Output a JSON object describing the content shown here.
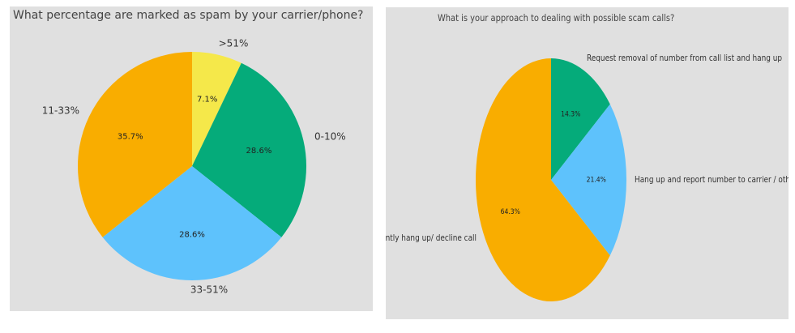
{
  "chart_data": [
    {
      "type": "pie",
      "title": "What percentage are marked as spam by your carrier/phone?",
      "categories": [
        ">51%",
        "0-10%",
        "33-51%",
        "11-33%"
      ],
      "values": [
        7.1,
        28.6,
        28.6,
        35.7
      ],
      "value_labels": [
        "7.1%",
        "28.6%",
        "28.6%",
        "35.7%"
      ],
      "colors": [
        "#f5e84a",
        "#05ab7a",
        "#5ec2fc",
        "#f9ad00"
      ],
      "start_angle_deg": 90,
      "direction": "clockwise"
    },
    {
      "type": "pie",
      "title": "What is your approach to dealing with possible scam calls?",
      "categories": [
        "Request removal of number from call list and hang up",
        "Hang up and report number to carrier / other service",
        "Instantly hang up/ decline call"
      ],
      "values": [
        14.3,
        21.4,
        64.3
      ],
      "value_labels": [
        "14.3%",
        "21.4%",
        "64.3%"
      ],
      "colors": [
        "#05ab7a",
        "#5ec2fc",
        "#f9ad00"
      ],
      "start_angle_deg": 90,
      "direction": "clockwise"
    }
  ]
}
